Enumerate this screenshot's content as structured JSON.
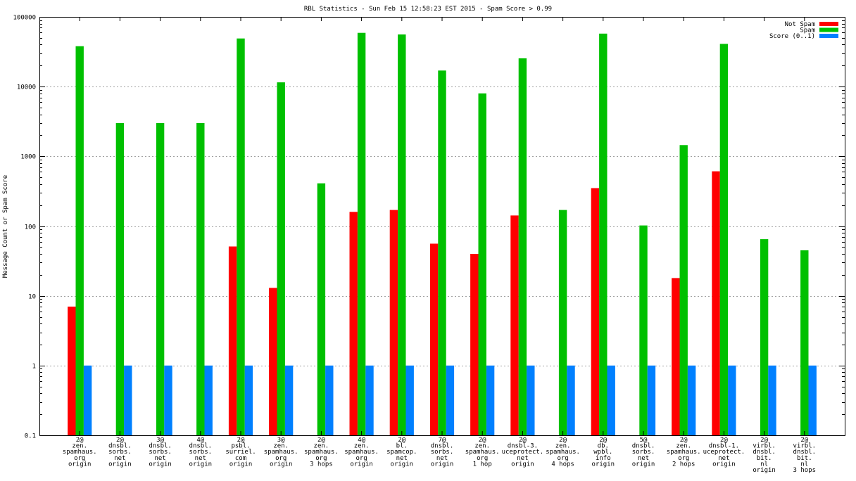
{
  "chart_data": {
    "type": "bar",
    "title": "RBL Statistics - Sun Feb 15 12:58:23 EST 2015 - Spam Score > 0.99",
    "xlabel": "",
    "ylabel": "Message Count or Spam Score",
    "yscale": "log",
    "ylim": [
      0.1,
      100000
    ],
    "y_ticks": [
      0.1,
      1,
      10,
      100,
      1000,
      10000,
      100000
    ],
    "y_tick_labels": [
      "0.1",
      "1",
      "10",
      "100",
      "1000",
      "10000",
      "100000"
    ],
    "grid": true,
    "legend_position": "top-right",
    "categories": [
      [
        "2@",
        "zen.",
        "spamhaus.",
        "org",
        "origin"
      ],
      [
        "2@",
        "dnsbl.",
        "sorbs.",
        "net",
        "origin"
      ],
      [
        "3@",
        "dnsbl.",
        "sorbs.",
        "net",
        "origin"
      ],
      [
        "4@",
        "dnsbl.",
        "sorbs.",
        "net",
        "origin"
      ],
      [
        "2@",
        "psbl.",
        "surriel.",
        "com",
        "origin"
      ],
      [
        "3@",
        "zen.",
        "spamhaus.",
        "org",
        "origin"
      ],
      [
        "2@",
        "zen.",
        "spamhaus.",
        "org",
        "3 hops"
      ],
      [
        "4@",
        "zen.",
        "spamhaus.",
        "org",
        "origin"
      ],
      [
        "2@",
        "bl.",
        "spamcop.",
        "net",
        "origin"
      ],
      [
        "7@",
        "dnsbl.",
        "sorbs.",
        "net",
        "origin"
      ],
      [
        "2@",
        "zen.",
        "spamhaus.",
        "org",
        "1 hop"
      ],
      [
        "2@",
        "dnsbl-3.",
        "uceprotect.",
        "net",
        "origin"
      ],
      [
        "2@",
        "zen.",
        "spamhaus.",
        "org",
        "4 hops"
      ],
      [
        "2@",
        "db.",
        "wpbl.",
        "info",
        "origin"
      ],
      [
        "5@",
        "dnsbl.",
        "sorbs.",
        "net",
        "origin"
      ],
      [
        "2@",
        "zen.",
        "spamhaus.",
        "org",
        "2 hops"
      ],
      [
        "2@",
        "dnsbl-1.",
        "uceprotect.",
        "net",
        "origin"
      ],
      [
        "2@",
        "virbl.",
        "dnsbl.",
        "bit.",
        "nl",
        "origin"
      ],
      [
        "2@",
        "virbl.",
        "dnsbl.",
        "bit.",
        "nl",
        "3 hops"
      ]
    ],
    "series": [
      {
        "name": "Not Spam",
        "color": "#ff0000",
        "values": [
          7,
          null,
          null,
          null,
          51,
          13,
          null,
          160,
          170,
          56,
          40,
          142,
          null,
          350,
          null,
          18,
          610,
          null,
          null
        ]
      },
      {
        "name": "Spam",
        "color": "#00c000",
        "values": [
          38000,
          3000,
          3000,
          3000,
          49000,
          11500,
          410,
          59000,
          56000,
          17000,
          8000,
          25500,
          170,
          57500,
          102,
          1450,
          41000,
          65,
          45
        ]
      },
      {
        "name": "Score (0..1)",
        "color": "#0080ff",
        "values": [
          1,
          1,
          1,
          1,
          1,
          1,
          1,
          1,
          1,
          1,
          1,
          1,
          1,
          1,
          1,
          1,
          1,
          1,
          1
        ]
      }
    ]
  }
}
